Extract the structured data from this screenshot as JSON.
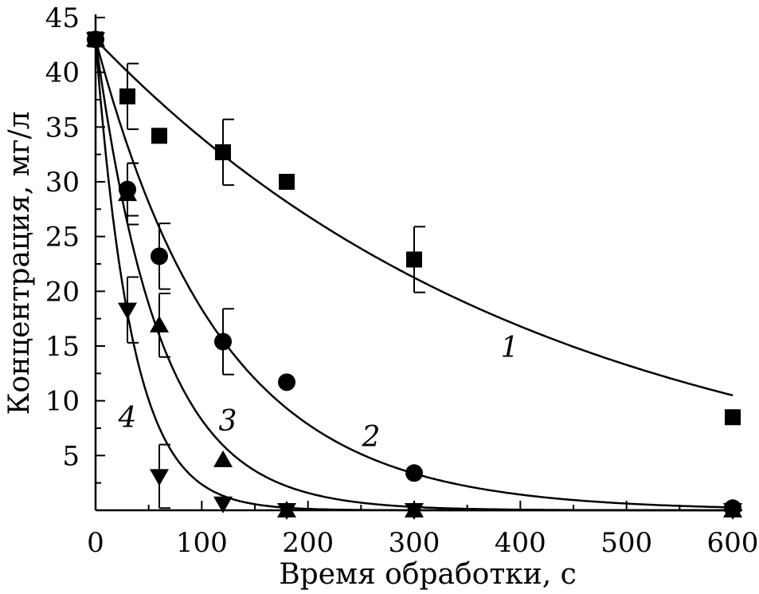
{
  "chart_data": {
    "type": "scatter",
    "xlabel": "Время обработки, с",
    "ylabel": "Концентрация, мг/л",
    "xlim": [
      0,
      600
    ],
    "ylim": [
      0,
      45
    ],
    "x_ticks": [
      "0",
      "100",
      "200",
      "300",
      "400",
      "500",
      "600"
    ],
    "y_ticks": [
      "5",
      "10",
      "15",
      "20",
      "25",
      "30",
      "35",
      "40",
      "45"
    ],
    "grid": false,
    "series": [
      {
        "label": "1",
        "marker": "square",
        "points": [
          {
            "x": 0,
            "y": 43.0
          },
          {
            "x": 30,
            "y": 37.8,
            "err": 3.0
          },
          {
            "x": 60,
            "y": 34.2
          },
          {
            "x": 120,
            "y": 32.7,
            "err": 3.0
          },
          {
            "x": 180,
            "y": 30.0
          },
          {
            "x": 300,
            "y": 22.9,
            "err": 3.0
          },
          {
            "x": 600,
            "y": 8.5
          }
        ],
        "fit": {
          "y0": 43.0,
          "k": 0.00235
        }
      },
      {
        "label": "2",
        "marker": "circle",
        "points": [
          {
            "x": 0,
            "y": 43.0
          },
          {
            "x": 30,
            "y": 29.3,
            "err": 2.4
          },
          {
            "x": 60,
            "y": 23.2,
            "err": 3.0
          },
          {
            "x": 120,
            "y": 15.4,
            "err": 3.0
          },
          {
            "x": 180,
            "y": 11.7
          },
          {
            "x": 300,
            "y": 3.4
          },
          {
            "x": 600,
            "y": 0.2
          }
        ],
        "fit": {
          "y0": 43.0,
          "k": 0.0085
        }
      },
      {
        "label": "3",
        "marker": "triangle-up",
        "points": [
          {
            "x": 0,
            "y": 43.0
          },
          {
            "x": 30,
            "y": 28.9,
            "err": 2.8
          },
          {
            "x": 60,
            "y": 16.9,
            "err": 2.9
          },
          {
            "x": 120,
            "y": 4.6
          },
          {
            "x": 180,
            "y": 0.0
          },
          {
            "x": 300,
            "y": 0.0
          },
          {
            "x": 600,
            "y": 0.0
          }
        ],
        "fit": {
          "y0": 43.0,
          "k": 0.0165
        }
      },
      {
        "label": "4",
        "marker": "triangle-down",
        "points": [
          {
            "x": 0,
            "y": 43.0
          },
          {
            "x": 30,
            "y": 18.3,
            "err": 3.0
          },
          {
            "x": 60,
            "y": 3.1,
            "err": 2.9
          },
          {
            "x": 120,
            "y": 0.6
          },
          {
            "x": 180,
            "y": 0.0
          },
          {
            "x": 300,
            "y": 0.0
          },
          {
            "x": 600,
            "y": 0.0
          }
        ],
        "fit": {
          "y0": 43.0,
          "k": 0.029
        }
      }
    ]
  }
}
